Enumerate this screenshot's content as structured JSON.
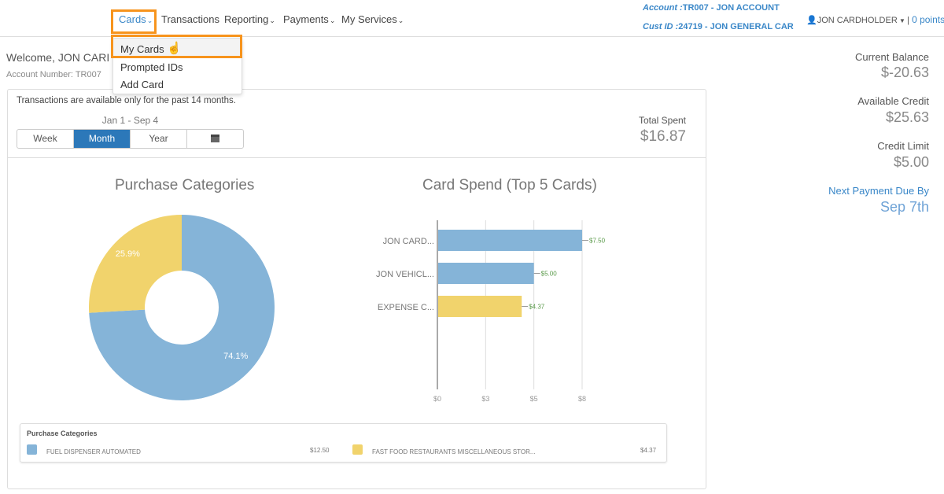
{
  "nav": {
    "items": [
      {
        "label": "Cards",
        "dropdown": true
      },
      {
        "label": "Transactions"
      },
      {
        "label": "Reporting",
        "dropdown": true
      },
      {
        "label": "Payments",
        "dropdown": true
      },
      {
        "label": "My Services",
        "dropdown": true
      }
    ],
    "active": "Cards"
  },
  "account": {
    "account_label": "Account :",
    "account_value": "TR007 - JON ACCOUNT",
    "cust_label": "Cust ID :",
    "cust_value": "24719 - JON GENERAL CAR"
  },
  "user": {
    "name": "JON CARDHOLDER",
    "points": "0 points",
    "separator": "|"
  },
  "cards_menu": {
    "items": [
      "My Cards",
      "Prompted IDs",
      "Add Card"
    ],
    "hovered": "My Cards"
  },
  "welcome": {
    "text": "Welcome, JON CARI",
    "account_number": "Account Number: TR007"
  },
  "panel": {
    "notice": "Transactions are available only for the past 14 months.",
    "date_range": "Jan 1 - Sep 4",
    "periods": [
      "Week",
      "Month",
      "Year"
    ],
    "selected_period": "Month",
    "total_spent_label": "Total Spent",
    "total_spent": "$16.87"
  },
  "summary": [
    {
      "label": "Current Balance",
      "value": "$-20.63"
    },
    {
      "label": "Available Credit",
      "value": "$25.63"
    },
    {
      "label": "Credit Limit",
      "value": "$5.00"
    },
    {
      "label": "Next Payment Due By",
      "value": "Sep 7th"
    }
  ],
  "colors": {
    "blue": "#85b4d8",
    "yellow": "#f1d36c",
    "accent": "#2c78b9",
    "highlight": "#f7941d",
    "link": "#3a87c8"
  },
  "chart_data": [
    {
      "type": "pie",
      "title": "Purchase Categories",
      "donut": true,
      "slices": [
        {
          "name": "FUEL DISPENSER AUTOMATED",
          "value": 12.5,
          "label": "74.1%",
          "color": "#85b4d8"
        },
        {
          "name": "FAST FOOD RESTAURANTS MISCELLANEOUS STOR...",
          "value": 4.37,
          "label": "25.9%",
          "color": "#f1d36c"
        }
      ],
      "legend": {
        "title": "Purchase Categories",
        "placement": "bottom",
        "values": [
          "$12.50",
          "$4.37"
        ]
      }
    },
    {
      "type": "bar",
      "orientation": "horizontal",
      "title": "Card Spend (Top 5 Cards)",
      "categories": [
        "JON CARD...",
        "JON VEHICL...",
        "EXPENSE C..."
      ],
      "values": [
        7.5,
        5.0,
        4.37
      ],
      "data_labels": [
        "$7.50",
        "$5.00",
        "$4.37"
      ],
      "colors": [
        "#85b4d8",
        "#85b4d8",
        "#f1d36c"
      ],
      "xticks": [
        0,
        2.5,
        5,
        7.5
      ],
      "xtick_labels": [
        "$0",
        "$3",
        "$5",
        "$8"
      ],
      "xlim": [
        0,
        7.5
      ],
      "grid": true
    }
  ]
}
